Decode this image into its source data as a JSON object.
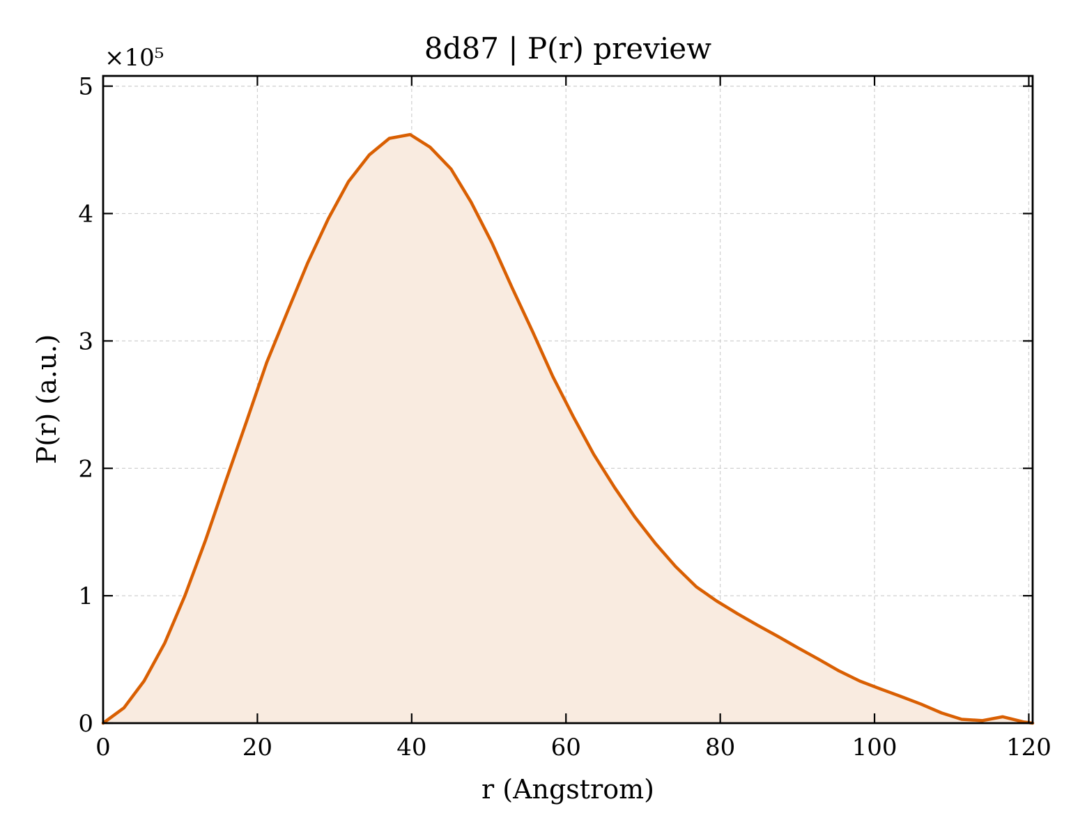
{
  "chart_data": {
    "type": "line",
    "title": "8d87 | P(r) preview",
    "xlabel": "r (Angstrom)",
    "ylabel": "P(r) (a.u.)",
    "y_multiplier_label": "×10⁵",
    "y_scale_factor": 100000,
    "xlim": [
      0,
      120.5
    ],
    "ylim": [
      0,
      5.08
    ],
    "x_ticks": [
      0,
      20,
      40,
      60,
      80,
      100,
      120
    ],
    "y_ticks": [
      0,
      1,
      2,
      3,
      4,
      5
    ],
    "grid": true,
    "fill_under": true,
    "line_color": "#d95f02",
    "fill_color": "#f9ebe0",
    "series": [
      {
        "x": [
          0,
          2.7,
          5.3,
          8,
          10.6,
          13.3,
          15.9,
          18.6,
          21.2,
          23.9,
          26.5,
          29.2,
          31.8,
          34.5,
          37.1,
          39.8,
          42.4,
          45.1,
          47.7,
          50.4,
          53,
          55.7,
          58.3,
          61,
          63.6,
          66.3,
          68.9,
          71.6,
          74.2,
          76.9,
          79.5,
          82.2,
          84.8,
          87.5,
          90.1,
          92.8,
          95.4,
          98.1,
          100.7,
          103.4,
          106,
          108.7,
          111.3,
          114,
          116.6,
          119.3,
          120.5
        ],
        "values": [
          0,
          0.12,
          0.33,
          0.63,
          1.0,
          1.44,
          1.9,
          2.37,
          2.83,
          3.23,
          3.61,
          3.96,
          4.25,
          4.46,
          4.59,
          4.62,
          4.52,
          4.35,
          4.09,
          3.77,
          3.42,
          3.07,
          2.72,
          2.4,
          2.11,
          1.85,
          1.62,
          1.41,
          1.23,
          1.07,
          0.96,
          0.86,
          0.77,
          0.68,
          0.59,
          0.5,
          0.41,
          0.33,
          0.27,
          0.21,
          0.15,
          0.08,
          0.03,
          0.02,
          0.05,
          0.01,
          0.0
        ]
      }
    ]
  }
}
